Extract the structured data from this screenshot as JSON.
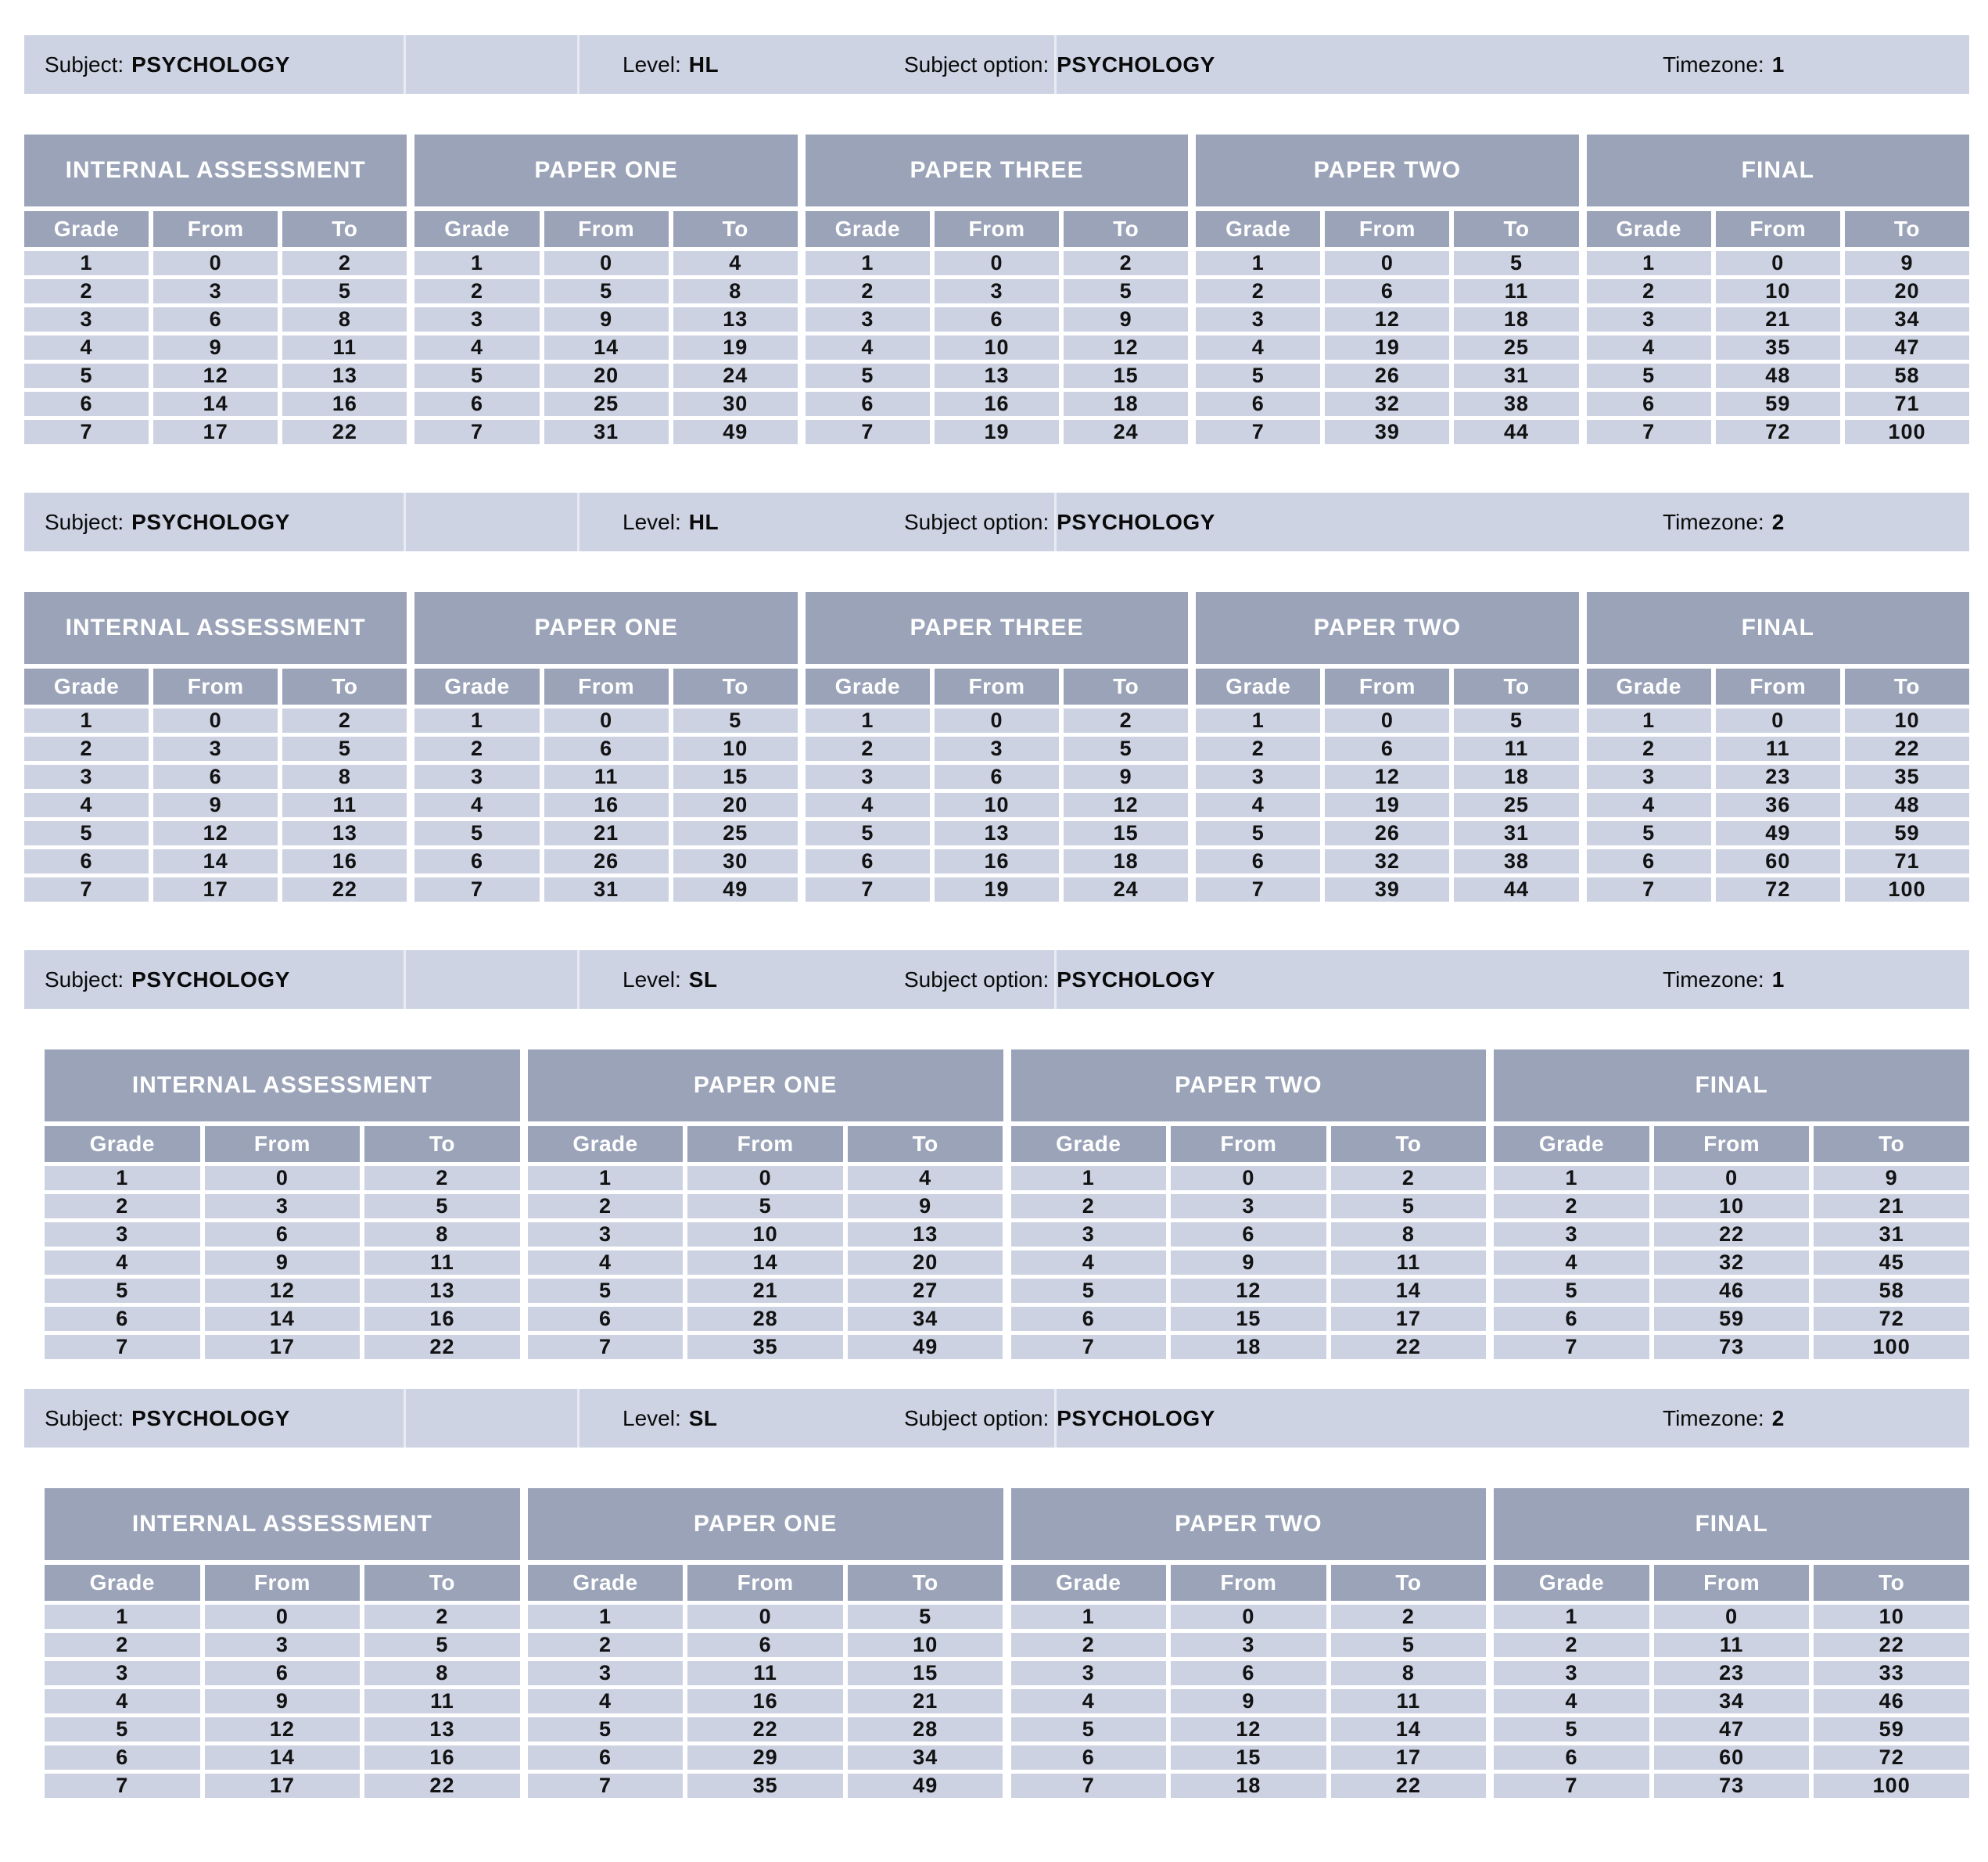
{
  "colors": {
    "info_bar_bg": "#cdd3e3",
    "header_bg": "#9aa3b8",
    "header_text": "#ffffff",
    "data_cell_bg": "#ccd2e2",
    "data_text": "#121212",
    "page_bg": "#ffffff"
  },
  "sections": [
    {
      "info": {
        "subject_label": "Subject:",
        "subject": "PSYCHOLOGY",
        "level_label": "Level:",
        "level": "HL",
        "option_label": "Subject option:",
        "option": "PSYCHOLOGY",
        "timezone_label": "Timezone:",
        "timezone": "1"
      },
      "groups": [
        {
          "title": "INTERNAL ASSESSMENT",
          "columns": [
            "Grade",
            "From",
            "To"
          ],
          "rows": [
            [
              1,
              0,
              2
            ],
            [
              2,
              3,
              5
            ],
            [
              3,
              6,
              8
            ],
            [
              4,
              9,
              11
            ],
            [
              5,
              12,
              13
            ],
            [
              6,
              14,
              16
            ],
            [
              7,
              17,
              22
            ]
          ]
        },
        {
          "title": "PAPER ONE",
          "columns": [
            "Grade",
            "From",
            "To"
          ],
          "rows": [
            [
              1,
              0,
              4
            ],
            [
              2,
              5,
              8
            ],
            [
              3,
              9,
              13
            ],
            [
              4,
              14,
              19
            ],
            [
              5,
              20,
              24
            ],
            [
              6,
              25,
              30
            ],
            [
              7,
              31,
              49
            ]
          ]
        },
        {
          "title": "PAPER THREE",
          "columns": [
            "Grade",
            "From",
            "To"
          ],
          "rows": [
            [
              1,
              0,
              2
            ],
            [
              2,
              3,
              5
            ],
            [
              3,
              6,
              9
            ],
            [
              4,
              10,
              12
            ],
            [
              5,
              13,
              15
            ],
            [
              6,
              16,
              18
            ],
            [
              7,
              19,
              24
            ]
          ]
        },
        {
          "title": "PAPER TWO",
          "columns": [
            "Grade",
            "From",
            "To"
          ],
          "rows": [
            [
              1,
              0,
              5
            ],
            [
              2,
              6,
              11
            ],
            [
              3,
              12,
              18
            ],
            [
              4,
              19,
              25
            ],
            [
              5,
              26,
              31
            ],
            [
              6,
              32,
              38
            ],
            [
              7,
              39,
              44
            ]
          ]
        },
        {
          "title": "FINAL",
          "columns": [
            "Grade",
            "From",
            "To"
          ],
          "rows": [
            [
              1,
              0,
              9
            ],
            [
              2,
              10,
              20
            ],
            [
              3,
              21,
              34
            ],
            [
              4,
              35,
              47
            ],
            [
              5,
              48,
              58
            ],
            [
              6,
              59,
              71
            ],
            [
              7,
              72,
              100
            ]
          ]
        }
      ]
    },
    {
      "info": {
        "subject_label": "Subject:",
        "subject": "PSYCHOLOGY",
        "level_label": "Level:",
        "level": "HL",
        "option_label": "Subject option:",
        "option": "PSYCHOLOGY",
        "timezone_label": "Timezone:",
        "timezone": "2"
      },
      "groups": [
        {
          "title": "INTERNAL ASSESSMENT",
          "columns": [
            "Grade",
            "From",
            "To"
          ],
          "rows": [
            [
              1,
              0,
              2
            ],
            [
              2,
              3,
              5
            ],
            [
              3,
              6,
              8
            ],
            [
              4,
              9,
              11
            ],
            [
              5,
              12,
              13
            ],
            [
              6,
              14,
              16
            ],
            [
              7,
              17,
              22
            ]
          ]
        },
        {
          "title": "PAPER ONE",
          "columns": [
            "Grade",
            "From",
            "To"
          ],
          "rows": [
            [
              1,
              0,
              5
            ],
            [
              2,
              6,
              10
            ],
            [
              3,
              11,
              15
            ],
            [
              4,
              16,
              20
            ],
            [
              5,
              21,
              25
            ],
            [
              6,
              26,
              30
            ],
            [
              7,
              31,
              49
            ]
          ]
        },
        {
          "title": "PAPER THREE",
          "columns": [
            "Grade",
            "From",
            "To"
          ],
          "rows": [
            [
              1,
              0,
              2
            ],
            [
              2,
              3,
              5
            ],
            [
              3,
              6,
              9
            ],
            [
              4,
              10,
              12
            ],
            [
              5,
              13,
              15
            ],
            [
              6,
              16,
              18
            ],
            [
              7,
              19,
              24
            ]
          ]
        },
        {
          "title": "PAPER TWO",
          "columns": [
            "Grade",
            "From",
            "To"
          ],
          "rows": [
            [
              1,
              0,
              5
            ],
            [
              2,
              6,
              11
            ],
            [
              3,
              12,
              18
            ],
            [
              4,
              19,
              25
            ],
            [
              5,
              26,
              31
            ],
            [
              6,
              32,
              38
            ],
            [
              7,
              39,
              44
            ]
          ]
        },
        {
          "title": "FINAL",
          "columns": [
            "Grade",
            "From",
            "To"
          ],
          "rows": [
            [
              1,
              0,
              10
            ],
            [
              2,
              11,
              22
            ],
            [
              3,
              23,
              35
            ],
            [
              4,
              36,
              48
            ],
            [
              5,
              49,
              59
            ],
            [
              6,
              60,
              71
            ],
            [
              7,
              72,
              100
            ]
          ]
        }
      ]
    },
    {
      "info": {
        "subject_label": "Subject:",
        "subject": "PSYCHOLOGY",
        "level_label": "Level:",
        "level": "SL",
        "option_label": "Subject option:",
        "option": "PSYCHOLOGY",
        "timezone_label": "Timezone:",
        "timezone": "1"
      },
      "groups": [
        {
          "title": "INTERNAL ASSESSMENT",
          "columns": [
            "Grade",
            "From",
            "To"
          ],
          "rows": [
            [
              1,
              0,
              2
            ],
            [
              2,
              3,
              5
            ],
            [
              3,
              6,
              8
            ],
            [
              4,
              9,
              11
            ],
            [
              5,
              12,
              13
            ],
            [
              6,
              14,
              16
            ],
            [
              7,
              17,
              22
            ]
          ]
        },
        {
          "title": "PAPER ONE",
          "columns": [
            "Grade",
            "From",
            "To"
          ],
          "rows": [
            [
              1,
              0,
              4
            ],
            [
              2,
              5,
              9
            ],
            [
              3,
              10,
              13
            ],
            [
              4,
              14,
              20
            ],
            [
              5,
              21,
              27
            ],
            [
              6,
              28,
              34
            ],
            [
              7,
              35,
              49
            ]
          ]
        },
        {
          "title": "PAPER TWO",
          "columns": [
            "Grade",
            "From",
            "To"
          ],
          "rows": [
            [
              1,
              0,
              2
            ],
            [
              2,
              3,
              5
            ],
            [
              3,
              6,
              8
            ],
            [
              4,
              9,
              11
            ],
            [
              5,
              12,
              14
            ],
            [
              6,
              15,
              17
            ],
            [
              7,
              18,
              22
            ]
          ]
        },
        {
          "title": "FINAL",
          "columns": [
            "Grade",
            "From",
            "To"
          ],
          "rows": [
            [
              1,
              0,
              9
            ],
            [
              2,
              10,
              21
            ],
            [
              3,
              22,
              31
            ],
            [
              4,
              32,
              45
            ],
            [
              5,
              46,
              58
            ],
            [
              6,
              59,
              72
            ],
            [
              7,
              73,
              100
            ]
          ]
        }
      ]
    },
    {
      "info": {
        "subject_label": "Subject:",
        "subject": "PSYCHOLOGY",
        "level_label": "Level:",
        "level": "SL",
        "option_label": "Subject option:",
        "option": "PSYCHOLOGY",
        "timezone_label": "Timezone:",
        "timezone": "2"
      },
      "groups": [
        {
          "title": "INTERNAL ASSESSMENT",
          "columns": [
            "Grade",
            "From",
            "To"
          ],
          "rows": [
            [
              1,
              0,
              2
            ],
            [
              2,
              3,
              5
            ],
            [
              3,
              6,
              8
            ],
            [
              4,
              9,
              11
            ],
            [
              5,
              12,
              13
            ],
            [
              6,
              14,
              16
            ],
            [
              7,
              17,
              22
            ]
          ]
        },
        {
          "title": "PAPER ONE",
          "columns": [
            "Grade",
            "From",
            "To"
          ],
          "rows": [
            [
              1,
              0,
              5
            ],
            [
              2,
              6,
              10
            ],
            [
              3,
              11,
              15
            ],
            [
              4,
              16,
              21
            ],
            [
              5,
              22,
              28
            ],
            [
              6,
              29,
              34
            ],
            [
              7,
              35,
              49
            ]
          ]
        },
        {
          "title": "PAPER TWO",
          "columns": [
            "Grade",
            "From",
            "To"
          ],
          "rows": [
            [
              1,
              0,
              2
            ],
            [
              2,
              3,
              5
            ],
            [
              3,
              6,
              8
            ],
            [
              4,
              9,
              11
            ],
            [
              5,
              12,
              14
            ],
            [
              6,
              15,
              17
            ],
            [
              7,
              18,
              22
            ]
          ]
        },
        {
          "title": "FINAL",
          "columns": [
            "Grade",
            "From",
            "To"
          ],
          "rows": [
            [
              1,
              0,
              10
            ],
            [
              2,
              11,
              22
            ],
            [
              3,
              23,
              33
            ],
            [
              4,
              34,
              46
            ],
            [
              5,
              47,
              59
            ],
            [
              6,
              60,
              72
            ],
            [
              7,
              73,
              100
            ]
          ]
        }
      ]
    }
  ]
}
